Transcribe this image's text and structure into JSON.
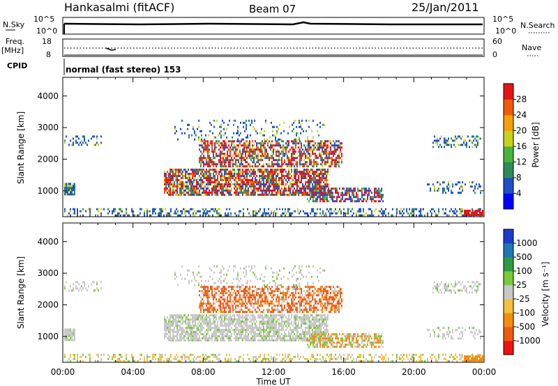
{
  "header": {
    "station": "Hankasalmi (fitACF)",
    "beam": "Beam 07",
    "date": "25/Jan/2011"
  },
  "status_panels": {
    "nsky_label": "N.Sky",
    "nsearch_label": "N.Search",
    "nsky_ticks": [
      "10^5",
      "10^0"
    ],
    "nsearch_ticks": [
      "10^5",
      "10^0"
    ],
    "freq_label": "Freq.",
    "freq_unit": "[MHz]",
    "freq_ticks": [
      "18",
      "8"
    ],
    "nave_label": "Nave",
    "nave_ticks": [
      "60",
      "0"
    ],
    "cpid_label": "CPID",
    "cpid_text": "normal (fast stereo) 153"
  },
  "chart_data": [
    {
      "type": "heatmap",
      "title": "",
      "xlabel": "Time UT",
      "ylabel": "Slant Range [km]",
      "ylim": [
        180,
        4590
      ],
      "y_ticks": [
        1000,
        2000,
        3000,
        4000
      ],
      "x_ticks": [
        "00:00",
        "04:00",
        "08:00",
        "12:00",
        "16:00",
        "20:00",
        "00:00"
      ],
      "colorbar": {
        "label": "Power [dB]",
        "ticks": [
          "28",
          "24",
          "20",
          "16",
          "12",
          "8",
          "4"
        ],
        "colors": [
          "#0000ff",
          "#1e4fc8",
          "#2f8c5a",
          "#48b53a",
          "#c8d21e",
          "#f5a00a",
          "#f05a0a",
          "#e61414"
        ]
      }
    },
    {
      "type": "heatmap",
      "title": "",
      "xlabel": "Time UT",
      "ylabel": "Slant Range [km]",
      "ylim": [
        180,
        4590
      ],
      "y_ticks": [
        1000,
        2000,
        3000,
        4000
      ],
      "x_ticks": [
        "00:00",
        "04:00",
        "08:00",
        "12:00",
        "16:00",
        "20:00",
        "00:00"
      ],
      "colorbar": {
        "label": "Velocity [m s⁻¹]",
        "ticks": [
          "1000",
          "500",
          "100",
          "25",
          "-25",
          "-100",
          "-500",
          "-1000"
        ],
        "colors": [
          "#ee1111",
          "#f05a10",
          "#f58c10",
          "#f5c040",
          "#c8c8c8",
          "#7ac83c",
          "#2e9a46",
          "#1e78b4",
          "#1a3cc8"
        ]
      }
    }
  ],
  "x_axis_label": "Time UT"
}
